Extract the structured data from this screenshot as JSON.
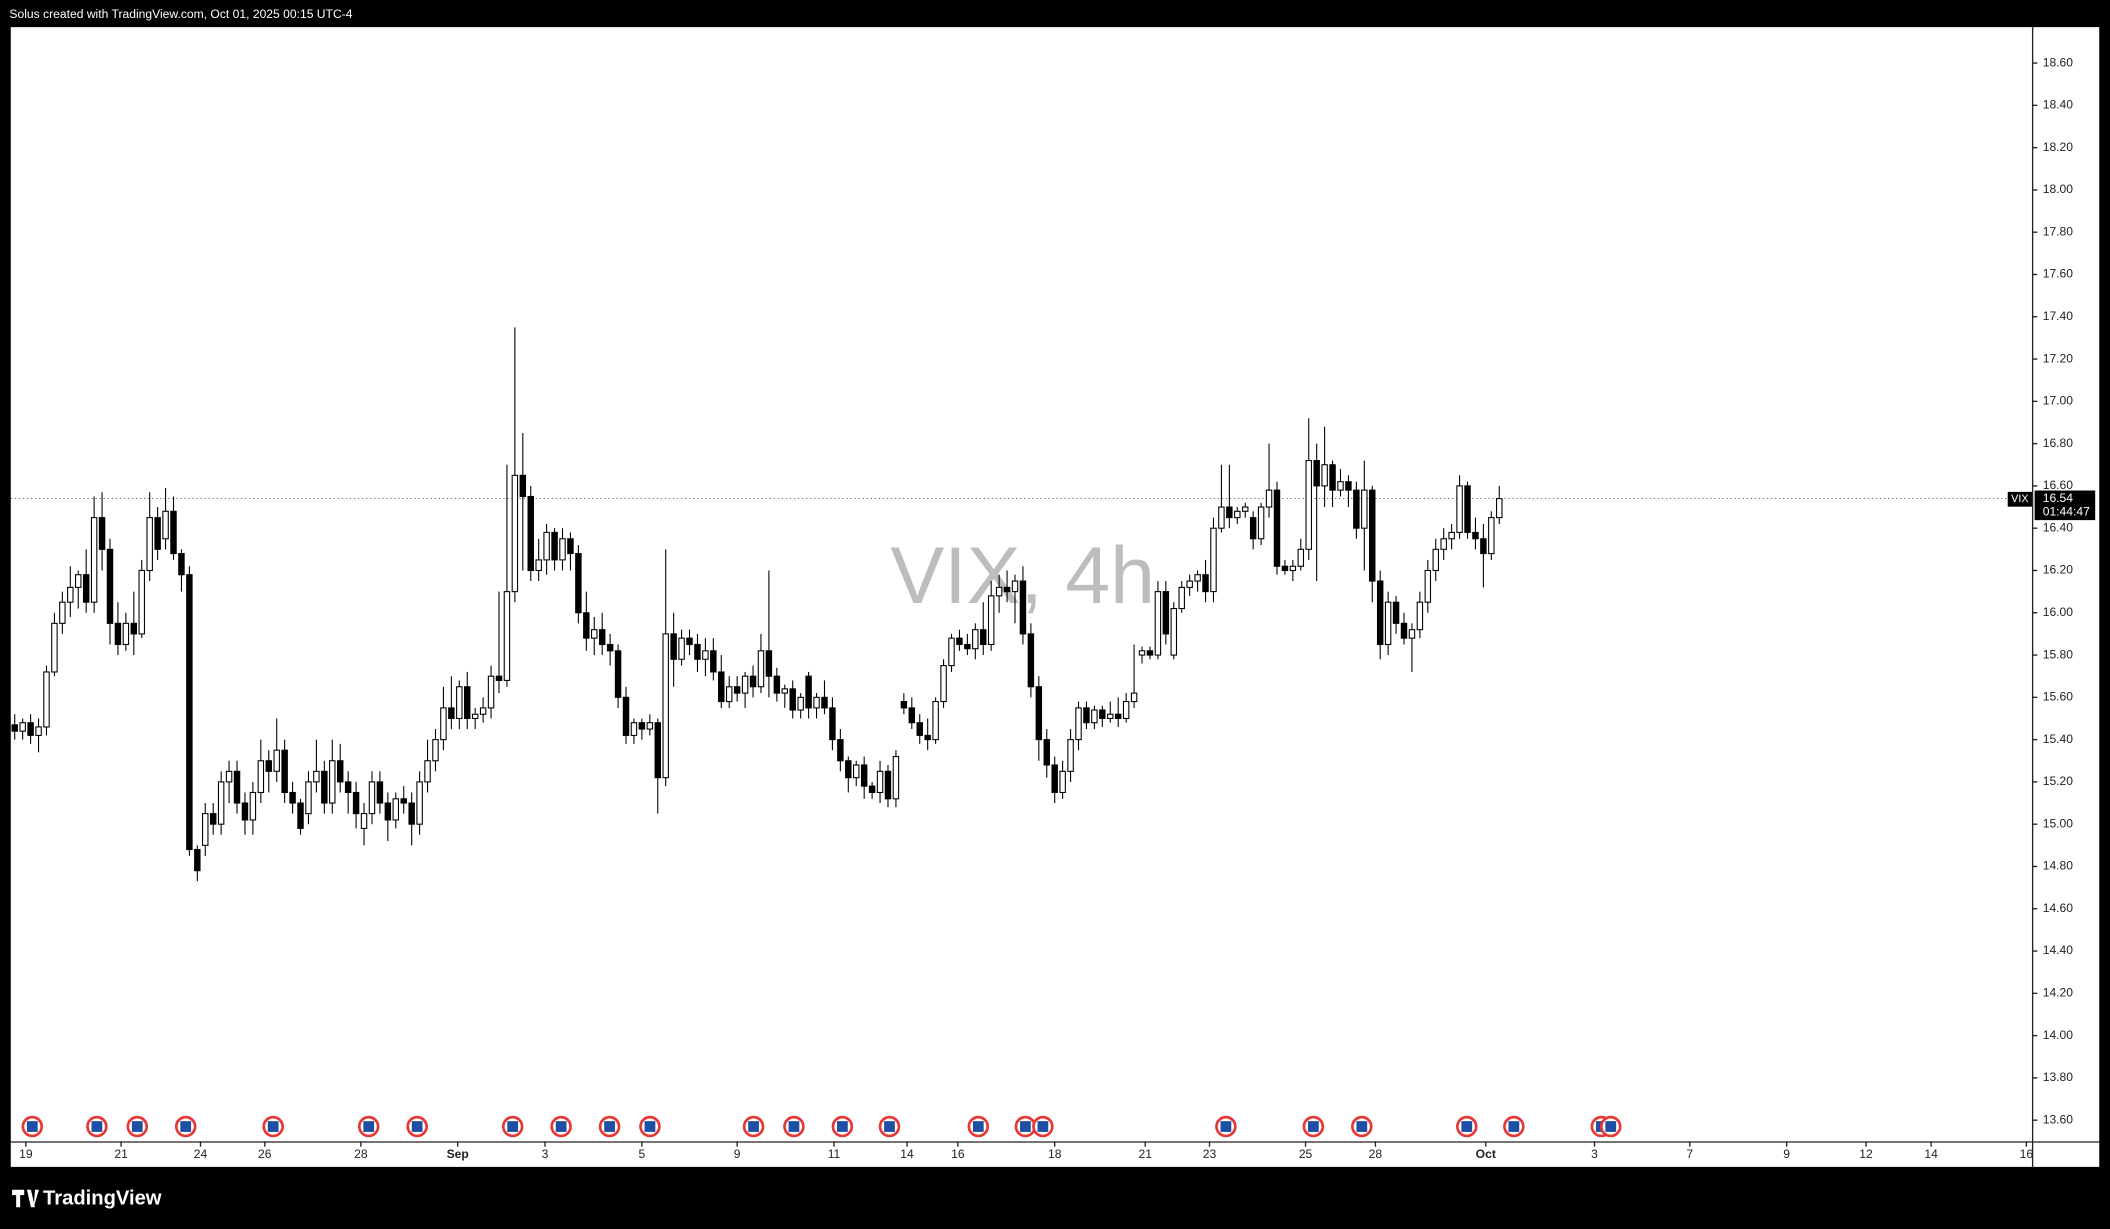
{
  "header": "Solus created with TradingView.com, Oct 01, 2025 00:15 UTC-4",
  "brand": "TradingView",
  "chart_data": {
    "type": "candlestick",
    "watermark": "VIX, 4h",
    "up_color": "#ffffff",
    "down_color": "#000000",
    "border_color": "#000000",
    "xlim": [
      -0.5,
      254.1
    ],
    "ylim": [
      13.5,
      18.77
    ],
    "yticks": [
      {
        "value": 13.6,
        "label": "13.60"
      },
      {
        "value": 13.8,
        "label": "13.80"
      },
      {
        "value": 14.0,
        "label": "14.00"
      },
      {
        "value": 14.2,
        "label": "14.20"
      },
      {
        "value": 14.4,
        "label": "14.40"
      },
      {
        "value": 14.6,
        "label": "14.60"
      },
      {
        "value": 14.8,
        "label": "14.80"
      },
      {
        "value": 15.0,
        "label": "15.00"
      },
      {
        "value": 15.2,
        "label": "15.20"
      },
      {
        "value": 15.4,
        "label": "15.40"
      },
      {
        "value": 15.6,
        "label": "15.60"
      },
      {
        "value": 15.8,
        "label": "15.80"
      },
      {
        "value": 16.0,
        "label": "16.00"
      },
      {
        "value": 16.2,
        "label": "16.20"
      },
      {
        "value": 16.4,
        "label": "16.40"
      },
      {
        "value": 16.6,
        "label": "16.60"
      },
      {
        "value": 16.8,
        "label": "16.80"
      },
      {
        "value": 17.0,
        "label": "17.00"
      },
      {
        "value": 17.2,
        "label": "17.20"
      },
      {
        "value": 17.4,
        "label": "17.40"
      },
      {
        "value": 17.6,
        "label": "17.60"
      },
      {
        "value": 17.8,
        "label": "17.80"
      },
      {
        "value": 18.0,
        "label": "18.00"
      },
      {
        "value": 18.2,
        "label": "18.20"
      },
      {
        "value": 18.4,
        "label": "18.40"
      },
      {
        "value": 18.6,
        "label": "18.60"
      }
    ],
    "xticks": [
      {
        "value": 1.4,
        "label": "19"
      },
      {
        "value": 13.4,
        "label": "21"
      },
      {
        "value": 23.4,
        "label": "24"
      },
      {
        "value": 31.5,
        "label": "26"
      },
      {
        "value": 43.6,
        "label": "28"
      },
      {
        "value": 55.8,
        "label": "Sep"
      },
      {
        "value": 66.8,
        "label": "3"
      },
      {
        "value": 79.0,
        "label": "5"
      },
      {
        "value": 91.0,
        "label": "9"
      },
      {
        "value": 103.2,
        "label": "11"
      },
      {
        "value": 112.4,
        "label": "14"
      },
      {
        "value": 118.8,
        "label": "16"
      },
      {
        "value": 131.0,
        "label": "18"
      },
      {
        "value": 142.4,
        "label": "21"
      },
      {
        "value": 150.5,
        "label": "23"
      },
      {
        "value": 162.6,
        "label": "25"
      },
      {
        "value": 171.4,
        "label": "28"
      },
      {
        "value": 185.3,
        "label": "Oct"
      },
      {
        "value": 199.0,
        "label": "3"
      },
      {
        "value": 211.0,
        "label": "7"
      },
      {
        "value": 223.2,
        "label": "9"
      },
      {
        "value": 233.2,
        "label": "12"
      },
      {
        "value": 241.4,
        "label": "14"
      },
      {
        "value": 253.4,
        "label": "16"
      }
    ],
    "last_price": {
      "symbol": "VIX",
      "value": 16.54,
      "countdown": "01:44:47"
    },
    "candles": [
      [
        15.47,
        15.52,
        15.4,
        15.44
      ],
      [
        15.44,
        15.5,
        15.4,
        15.48
      ],
      [
        15.48,
        15.52,
        15.38,
        15.42
      ],
      [
        15.42,
        15.5,
        15.34,
        15.46
      ],
      [
        15.46,
        15.75,
        15.42,
        15.72
      ],
      [
        15.72,
        16.0,
        15.7,
        15.95
      ],
      [
        15.95,
        16.1,
        15.9,
        16.05
      ],
      [
        16.05,
        16.22,
        15.98,
        16.12
      ],
      [
        16.12,
        16.2,
        16.02,
        16.18
      ],
      [
        16.18,
        16.3,
        16.0,
        16.05
      ],
      [
        16.05,
        16.55,
        16.0,
        16.45
      ],
      [
        16.45,
        16.57,
        16.2,
        16.3
      ],
      [
        16.3,
        16.35,
        15.85,
        15.95
      ],
      [
        15.95,
        16.05,
        15.8,
        15.85
      ],
      [
        15.85,
        16.0,
        15.82,
        15.95
      ],
      [
        15.95,
        16.1,
        15.8,
        15.9
      ],
      [
        15.9,
        16.25,
        15.88,
        16.2
      ],
      [
        16.2,
        16.57,
        16.15,
        16.45
      ],
      [
        16.45,
        16.5,
        16.25,
        16.3
      ],
      [
        16.35,
        16.59,
        16.3,
        16.48
      ],
      [
        16.48,
        16.55,
        16.25,
        16.28
      ],
      [
        16.28,
        16.3,
        16.1,
        16.18
      ],
      [
        16.18,
        16.22,
        14.85,
        14.88
      ],
      [
        14.88,
        14.9,
        14.73,
        14.78
      ],
      [
        14.9,
        15.1,
        14.85,
        15.05
      ],
      [
        15.05,
        15.1,
        14.95,
        15.0
      ],
      [
        15.0,
        15.25,
        14.95,
        15.2
      ],
      [
        15.2,
        15.3,
        15.1,
        15.25
      ],
      [
        15.25,
        15.3,
        15.05,
        15.1
      ],
      [
        15.1,
        15.15,
        14.95,
        15.02
      ],
      [
        15.02,
        15.2,
        14.95,
        15.15
      ],
      [
        15.15,
        15.4,
        15.1,
        15.3
      ],
      [
        15.3,
        15.35,
        15.15,
        15.25
      ],
      [
        15.25,
        15.5,
        15.2,
        15.35
      ],
      [
        15.35,
        15.4,
        15.1,
        15.15
      ],
      [
        15.15,
        15.2,
        15.05,
        15.1
      ],
      [
        15.1,
        15.12,
        14.95,
        14.98
      ],
      [
        15.05,
        15.25,
        15.0,
        15.2
      ],
      [
        15.2,
        15.4,
        15.15,
        15.25
      ],
      [
        15.25,
        15.3,
        15.05,
        15.1
      ],
      [
        15.1,
        15.4,
        15.05,
        15.3
      ],
      [
        15.3,
        15.38,
        15.15,
        15.2
      ],
      [
        15.2,
        15.25,
        15.05,
        15.15
      ],
      [
        15.15,
        15.2,
        14.98,
        15.05
      ],
      [
        14.98,
        15.1,
        14.9,
        15.05
      ],
      [
        15.05,
        15.25,
        15.0,
        15.2
      ],
      [
        15.2,
        15.25,
        15.05,
        15.1
      ],
      [
        15.1,
        15.15,
        14.92,
        15.02
      ],
      [
        15.02,
        15.15,
        14.98,
        15.12
      ],
      [
        15.12,
        15.18,
        15.05,
        15.1
      ],
      [
        15.1,
        15.15,
        14.9,
        15.0
      ],
      [
        15.0,
        15.25,
        14.95,
        15.2
      ],
      [
        15.2,
        15.4,
        15.15,
        15.3
      ],
      [
        15.3,
        15.45,
        15.25,
        15.4
      ],
      [
        15.4,
        15.65,
        15.35,
        15.55
      ],
      [
        15.55,
        15.7,
        15.45,
        15.5
      ],
      [
        15.5,
        15.68,
        15.45,
        15.65
      ],
      [
        15.65,
        15.72,
        15.45,
        15.5
      ],
      [
        15.5,
        15.55,
        15.45,
        15.52
      ],
      [
        15.52,
        15.6,
        15.48,
        15.55
      ],
      [
        15.55,
        15.75,
        15.5,
        15.7
      ],
      [
        15.7,
        16.1,
        15.62,
        15.68
      ],
      [
        15.68,
        16.7,
        15.65,
        16.1
      ],
      [
        16.1,
        17.35,
        16.05,
        16.65
      ],
      [
        16.65,
        16.85,
        16.2,
        16.55
      ],
      [
        16.55,
        16.6,
        16.15,
        16.2
      ],
      [
        16.2,
        16.35,
        16.15,
        16.25
      ],
      [
        16.25,
        16.42,
        16.18,
        16.38
      ],
      [
        16.38,
        16.4,
        16.2,
        16.25
      ],
      [
        16.25,
        16.4,
        16.2,
        16.35
      ],
      [
        16.35,
        16.38,
        16.2,
        16.28
      ],
      [
        16.28,
        16.32,
        15.95,
        16.0
      ],
      [
        16.0,
        16.1,
        15.82,
        15.88
      ],
      [
        15.88,
        15.98,
        15.8,
        15.92
      ],
      [
        15.92,
        16.0,
        15.8,
        15.85
      ],
      [
        15.85,
        15.9,
        15.75,
        15.82
      ],
      [
        15.82,
        15.85,
        15.55,
        15.6
      ],
      [
        15.6,
        15.65,
        15.38,
        15.42
      ],
      [
        15.42,
        15.5,
        15.38,
        15.48
      ],
      [
        15.48,
        15.5,
        15.4,
        15.45
      ],
      [
        15.45,
        15.52,
        15.42,
        15.48
      ],
      [
        15.48,
        15.5,
        15.05,
        15.22
      ],
      [
        15.22,
        16.3,
        15.18,
        15.9
      ],
      [
        15.9,
        16.0,
        15.65,
        15.78
      ],
      [
        15.78,
        15.92,
        15.75,
        15.88
      ],
      [
        15.88,
        15.92,
        15.8,
        15.85
      ],
      [
        15.85,
        15.9,
        15.72,
        15.78
      ],
      [
        15.78,
        15.88,
        15.7,
        15.82
      ],
      [
        15.82,
        15.88,
        15.68,
        15.72
      ],
      [
        15.72,
        15.8,
        15.55,
        15.58
      ],
      [
        15.58,
        15.7,
        15.55,
        15.65
      ],
      [
        15.65,
        15.7,
        15.58,
        15.62
      ],
      [
        15.62,
        15.72,
        15.55,
        15.7
      ],
      [
        15.7,
        15.75,
        15.6,
        15.65
      ],
      [
        15.65,
        15.9,
        15.62,
        15.82
      ],
      [
        15.82,
        16.2,
        15.6,
        15.7
      ],
      [
        15.7,
        15.74,
        15.58,
        15.62
      ],
      [
        15.62,
        15.66,
        15.55,
        15.64
      ],
      [
        15.64,
        15.68,
        15.5,
        15.54
      ],
      [
        15.54,
        15.62,
        15.5,
        15.6
      ],
      [
        15.7,
        15.72,
        15.5,
        15.55
      ],
      [
        15.55,
        15.62,
        15.5,
        15.6
      ],
      [
        15.6,
        15.68,
        15.52,
        15.55
      ],
      [
        15.55,
        15.6,
        15.35,
        15.4
      ],
      [
        15.4,
        15.45,
        15.25,
        15.3
      ],
      [
        15.3,
        15.32,
        15.15,
        15.22
      ],
      [
        15.22,
        15.3,
        15.18,
        15.28
      ],
      [
        15.28,
        15.32,
        15.12,
        15.18
      ],
      [
        15.18,
        15.2,
        15.12,
        15.15
      ],
      [
        15.15,
        15.3,
        15.1,
        15.25
      ],
      [
        15.25,
        15.28,
        15.08,
        15.12
      ],
      [
        15.12,
        15.35,
        15.08,
        15.32
      ],
      [
        15.58,
        15.62,
        15.52,
        15.55
      ],
      [
        15.55,
        15.6,
        15.45,
        15.48
      ],
      [
        15.48,
        15.52,
        15.38,
        15.42
      ],
      [
        15.42,
        15.5,
        15.35,
        15.4
      ],
      [
        15.4,
        15.6,
        15.38,
        15.58
      ],
      [
        15.58,
        15.78,
        15.55,
        15.75
      ],
      [
        15.75,
        15.9,
        15.72,
        15.88
      ],
      [
        15.88,
        15.92,
        15.82,
        15.85
      ],
      [
        15.85,
        15.9,
        15.8,
        15.83
      ],
      [
        15.83,
        15.95,
        15.78,
        15.92
      ],
      [
        15.92,
        16.05,
        15.8,
        15.85
      ],
      [
        15.85,
        16.15,
        15.82,
        16.08
      ],
      [
        16.08,
        16.18,
        16.0,
        16.12
      ],
      [
        16.12,
        16.2,
        16.05,
        16.1
      ],
      [
        16.1,
        16.18,
        15.95,
        16.15
      ],
      [
        16.15,
        16.22,
        15.85,
        15.9
      ],
      [
        15.9,
        15.95,
        15.6,
        15.65
      ],
      [
        15.65,
        15.7,
        15.3,
        15.4
      ],
      [
        15.4,
        15.45,
        15.22,
        15.28
      ],
      [
        15.28,
        15.32,
        15.1,
        15.15
      ],
      [
        15.15,
        15.3,
        15.12,
        15.25
      ],
      [
        15.25,
        15.45,
        15.2,
        15.4
      ],
      [
        15.4,
        15.58,
        15.35,
        15.55
      ],
      [
        15.55,
        15.58,
        15.45,
        15.48
      ],
      [
        15.48,
        15.56,
        15.45,
        15.54
      ],
      [
        15.54,
        15.56,
        15.46,
        15.5
      ],
      [
        15.5,
        15.58,
        15.48,
        15.52
      ],
      [
        15.52,
        15.6,
        15.46,
        15.5
      ],
      [
        15.5,
        15.62,
        15.48,
        15.58
      ],
      [
        15.58,
        15.85,
        15.55,
        15.62
      ],
      [
        15.8,
        15.84,
        15.76,
        15.82
      ],
      [
        15.82,
        15.84,
        15.78,
        15.8
      ],
      [
        15.8,
        16.15,
        15.78,
        16.1
      ],
      [
        16.1,
        16.15,
        15.85,
        15.9
      ],
      [
        15.8,
        16.05,
        15.78,
        16.02
      ],
      [
        16.02,
        16.15,
        16.0,
        16.12
      ],
      [
        16.12,
        16.18,
        16.08,
        16.15
      ],
      [
        16.15,
        16.2,
        16.1,
        16.18
      ],
      [
        16.18,
        16.25,
        16.05,
        16.1
      ],
      [
        16.1,
        16.45,
        16.05,
        16.4
      ],
      [
        16.4,
        16.7,
        16.38,
        16.5
      ],
      [
        16.5,
        16.7,
        16.4,
        16.45
      ],
      [
        16.45,
        16.5,
        16.42,
        16.48
      ],
      [
        16.48,
        16.52,
        16.45,
        16.5
      ],
      [
        16.45,
        16.48,
        16.3,
        16.35
      ],
      [
        16.35,
        16.52,
        16.32,
        16.5
      ],
      [
        16.5,
        16.8,
        16.45,
        16.58
      ],
      [
        16.58,
        16.62,
        16.18,
        16.22
      ],
      [
        16.22,
        16.25,
        16.18,
        16.2
      ],
      [
        16.2,
        16.25,
        16.15,
        16.22
      ],
      [
        16.22,
        16.35,
        16.2,
        16.3
      ],
      [
        16.3,
        16.92,
        16.25,
        16.72
      ],
      [
        16.72,
        16.8,
        16.15,
        16.6
      ],
      [
        16.6,
        16.88,
        16.5,
        16.7
      ],
      [
        16.7,
        16.72,
        16.5,
        16.58
      ],
      [
        16.58,
        16.68,
        16.55,
        16.62
      ],
      [
        16.62,
        16.65,
        16.5,
        16.58
      ],
      [
        16.58,
        16.62,
        16.35,
        16.4
      ],
      [
        16.4,
        16.72,
        16.2,
        16.58
      ],
      [
        16.58,
        16.6,
        16.05,
        16.15
      ],
      [
        16.15,
        16.2,
        15.78,
        15.85
      ],
      [
        15.85,
        16.1,
        15.8,
        16.05
      ],
      [
        16.05,
        16.08,
        15.9,
        15.95
      ],
      [
        15.95,
        16.0,
        15.85,
        15.88
      ],
      [
        15.88,
        15.95,
        15.72,
        15.92
      ],
      [
        15.92,
        16.1,
        15.88,
        16.05
      ],
      [
        16.05,
        16.25,
        16.0,
        16.2
      ],
      [
        16.2,
        16.35,
        16.15,
        16.3
      ],
      [
        16.3,
        16.4,
        16.25,
        16.35
      ],
      [
        16.35,
        16.42,
        16.3,
        16.38
      ],
      [
        16.38,
        16.65,
        16.35,
        16.6
      ],
      [
        16.6,
        16.62,
        16.35,
        16.38
      ],
      [
        16.38,
        16.45,
        16.3,
        16.35
      ],
      [
        16.35,
        16.42,
        16.12,
        16.28
      ],
      [
        16.28,
        16.48,
        16.25,
        16.45
      ],
      [
        16.45,
        16.6,
        16.42,
        16.54
      ]
    ]
  }
}
